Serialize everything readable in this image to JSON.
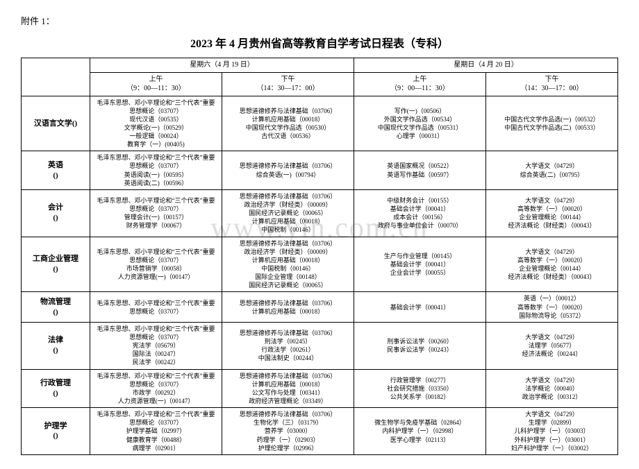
{
  "attachment_label": "附件 1：",
  "title": "2023 年 4 月贵州省高等教育自学考试日程表（专科）",
  "watermark_text": "www.yin.com.cn",
  "days": [
    {
      "label": "星期六（4 月 19 日）"
    },
    {
      "label": "星期日（4 月 20 日）"
    }
  ],
  "sessions": [
    {
      "period": "上午",
      "time": "（9：00—11：30）"
    },
    {
      "period": "下午",
      "time": "（14：30—17：00）"
    },
    {
      "period": "上午",
      "time": "（9：00—11：30）"
    },
    {
      "period": "下午",
      "time": "（14：30—17：00）"
    }
  ],
  "rows": [
    {
      "major": "汉语言文学()",
      "c1": "毛泽东思想、邓小平理论和“三个代表”重要\n思想概论（03707）\n现代汉语（00535）\n文学概论(一)（00529）\n一般逻辑（00024）\n教育学（一）(00405)",
      "c2": "思想道德修养与法律基础（03706）\n计算机应用基础（00018）\n中国现代文学作品选（00530）\n古代汉语（00536）",
      "c3": "写作(一)（00506）\n外国文学作品选（00534）\n中国现代文学作品选（00531）\n心理学（00031）",
      "c4": "中国古代文学作品选(一)（00532）\n中国古代文学作品选(二)（00533）"
    },
    {
      "major": "英语\n()",
      "c1": "毛泽东思想、邓小平理论和“三个代表”重要\n思想概论（03707）\n英语阅读(一)（00595）\n英语阅读(二)（00596）",
      "c2": "思想道德修养与法律基础（03706）\n综合英语(一)（00794）",
      "c3": "英语国家概况（00522）\n英语写作基础（00597）",
      "c4": "大学语文（04729）\n综合英语(二)（00795）"
    },
    {
      "major": "会计\n()",
      "c1": "毛泽东思想、邓小平理论和“三个代表”重要\n思想概论（03707）\n管理会计(一)（00157）\n财务管理学（00067）",
      "c2": "思想道德修养与法律基础（03706）\n政治经济学（财经类）（00009）\n国民经济记录概论（00065）\n计算机应用基础（00018）\n中国税制（00146）",
      "c3": "中级财务会计（00155）\n基础会计学（00041）\n成本会计（00156）\n政府与事业单位会计（00070）",
      "c4": "大学语文（04729）\n高等数学（一）（00020）\n企业管理概论（00144）\n经济法概论（财经类）（00043）"
    },
    {
      "major": "工商企业管理\n()",
      "c1": "毛泽东思想、邓小平理论和“三个代表”重要\n思想概论（03707）\n市场营销学（00058）\n人力资源管理(一)（00147）",
      "c2": "思想道德修养与法律基础（03706）\n政治经济学（财经类）（00009）\n计算机应用基础（00018）\n中国税制（00146）\n国际企业管理（00148）\n国民经济记录概论（00065）",
      "c3": "生产与作业管理（00145）\n基础会计学（00041）\n企业会计学（00055）",
      "c4": "大学语文（04729）\n高等数学（一）（00020）\n企业管理概论（00144）\n经济法概论（财经类）（00043）"
    },
    {
      "major": "物流管理\n()",
      "c1": "毛泽东思想、邓小平理论和“三个代表”重要\n思想概论（03707）",
      "c2": "思想道德修养与法律基础（03706）\n计算机应用基础（00018）",
      "c3": "基础会计学（00041）",
      "c4": "英语（一）（00012）\n高等数学（一）（00020）\n国际物流导论（05372）"
    },
    {
      "major": "法律\n()",
      "c1": "毛泽东思想、邓小平理论和“三个代表”重要\n思想概论（03707）\n宪法学（05679）\n国际法（00247）\n民法学（00242）",
      "c2": "思想道德修养与法律基础（03706）\n刑法学（00245）\n行政法学（00261）\n中国法制史（00244）",
      "c3": "刑事诉讼法学（00260）\n民事诉讼法学（00243）",
      "c4": "大学语文（04729）\n法理学（05677）\n经济法概论（00244）"
    },
    {
      "major": "行政管理\n()",
      "c1": "毛泽东思想、邓小平理论和“三个代表”重要\n思想概论（03707）\n市政学（00292）\n人力资源管理(一)（00147）",
      "c2": "思想道德修养与法律基础（03706）\n计算机应用基础（00018）\n公文写作与处理（00341）\n政府经济管理概论（03349）",
      "c3": "行政管理学（00277）\n社会研究措施（03350）\n公共关系学（00182）",
      "c4": "大学语文（04729）\n法学概论（00040）\n政治学概论（00312）"
    },
    {
      "major": "护理学\n()",
      "c1": "毛泽东思想、邓小平理论和“三个代表”重要\n思想概论（03707）\n护理学基础（02997）\n健康教育学（00488）\n病理学（02901）",
      "c2": "思想道德修养与法律基础（03706）\n生物化学（三）（03179）\n营养学（03000）\n药理学（一）（02903）\n护理伦理学（02996）",
      "c3": "微生物学与免疫学基础（02864）\n内科护理学（一）（02998）\n医学心理学（02113）",
      "c4": "大学语文（04729）\n生理学（02899）\n儿科护理学（一）（03003）\n外科护理学（一）（03001）\n妇产科护理学（一）（03002）"
    }
  ]
}
